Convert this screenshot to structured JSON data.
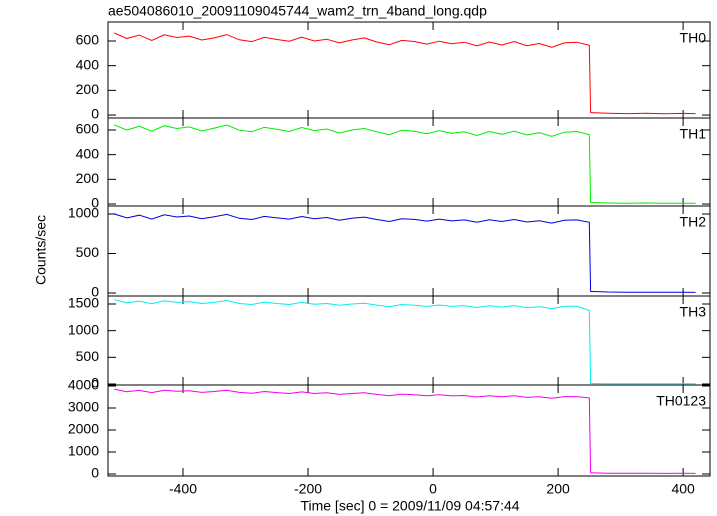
{
  "title": "ae504086010_20091109045744_wam2_trn_4band_long.qdp",
  "x_label": "Time [sec] 0 = 2009/11/09 04:57:44",
  "y_label": "Counts/sec",
  "chart_data": [
    {
      "type": "line",
      "x": [
        -510,
        -490,
        -470,
        -450,
        -430,
        -410,
        -390,
        -370,
        -350,
        -330,
        -310,
        -290,
        -270,
        -250,
        -230,
        -210,
        -190,
        -170,
        -150,
        -130,
        -110,
        -90,
        -70,
        -50,
        -30,
        -10,
        10,
        30,
        50,
        70,
        90,
        110,
        130,
        150,
        170,
        190,
        210,
        230,
        250,
        252,
        280,
        310,
        340,
        370,
        400,
        420
      ],
      "series": [
        {
          "name": "TH0",
          "color": "#ff0000",
          "values": [
            665,
            620,
            648,
            605,
            650,
            628,
            640,
            608,
            625,
            652,
            610,
            595,
            630,
            612,
            598,
            632,
            600,
            615,
            585,
            608,
            625,
            592,
            570,
            605,
            596,
            575,
            598,
            578,
            590,
            560,
            592,
            568,
            596,
            562,
            580,
            548,
            585,
            590,
            565,
            20,
            15,
            12,
            14,
            11,
            13,
            12
          ]
        }
      ],
      "xlim": [
        -520,
        443
      ],
      "xticks": [
        -400,
        -200,
        0,
        200,
        400
      ],
      "ylim": [
        -24,
        754
      ],
      "yticks": [
        0,
        200,
        400,
        600
      ]
    },
    {
      "type": "line",
      "x": [
        -510,
        -490,
        -470,
        -450,
        -430,
        -410,
        -390,
        -370,
        -350,
        -330,
        -310,
        -290,
        -270,
        -250,
        -230,
        -210,
        -190,
        -170,
        -150,
        -130,
        -110,
        -90,
        -70,
        -50,
        -30,
        -10,
        10,
        30,
        50,
        70,
        90,
        110,
        130,
        150,
        170,
        190,
        210,
        230,
        250,
        252,
        280,
        310,
        340,
        370,
        400,
        420
      ],
      "series": [
        {
          "name": "TH1",
          "color": "#00ee00",
          "values": [
            640,
            600,
            630,
            590,
            635,
            612,
            625,
            592,
            615,
            640,
            598,
            585,
            622,
            605,
            588,
            620,
            595,
            608,
            575,
            600,
            612,
            585,
            562,
            598,
            590,
            570,
            595,
            572,
            585,
            555,
            588,
            565,
            590,
            560,
            578,
            548,
            582,
            588,
            562,
            12,
            8,
            7,
            8,
            6,
            7,
            6
          ]
        }
      ],
      "xlim": [
        -520,
        443
      ],
      "xticks": [
        -400,
        -200,
        0,
        200,
        400
      ],
      "ylim": [
        -16,
        697
      ],
      "yticks": [
        0,
        200,
        400,
        600
      ]
    },
    {
      "type": "line",
      "x": [
        -510,
        -490,
        -470,
        -450,
        -430,
        -410,
        -390,
        -370,
        -350,
        -330,
        -310,
        -290,
        -270,
        -250,
        -230,
        -210,
        -190,
        -170,
        -150,
        -130,
        -110,
        -90,
        -70,
        -50,
        -30,
        -10,
        10,
        30,
        50,
        70,
        90,
        110,
        130,
        150,
        170,
        190,
        210,
        230,
        250,
        252,
        280,
        310,
        340,
        370,
        400,
        420
      ],
      "series": [
        {
          "name": "TH2",
          "color": "#0000dd",
          "values": [
            1000,
            950,
            985,
            935,
            990,
            962,
            975,
            940,
            965,
            995,
            945,
            930,
            970,
            950,
            935,
            968,
            940,
            955,
            920,
            945,
            960,
            930,
            905,
            940,
            932,
            910,
            935,
            912,
            925,
            895,
            928,
            905,
            930,
            898,
            915,
            885,
            920,
            925,
            895,
            20,
            12,
            10,
            10,
            9,
            9,
            8
          ]
        }
      ],
      "xlim": [
        -520,
        443
      ],
      "xticks": [
        -400,
        -200,
        0,
        200,
        400
      ],
      "ylim": [
        -38,
        1101
      ],
      "yticks": [
        0,
        500,
        1000
      ]
    },
    {
      "type": "line",
      "x": [
        -510,
        -490,
        -470,
        -450,
        -430,
        -410,
        -390,
        -370,
        -350,
        -330,
        -310,
        -290,
        -270,
        -250,
        -230,
        -210,
        -190,
        -170,
        -150,
        -130,
        -110,
        -90,
        -70,
        -50,
        -30,
        -10,
        10,
        30,
        50,
        70,
        90,
        110,
        130,
        150,
        170,
        190,
        210,
        230,
        250,
        252,
        280,
        310,
        340,
        370,
        400,
        420
      ],
      "series": [
        {
          "name": "TH3",
          "color": "#00eeee",
          "values": [
            1580,
            1520,
            1555,
            1505,
            1560,
            1530,
            1545,
            1510,
            1530,
            1565,
            1510,
            1490,
            1535,
            1510,
            1490,
            1530,
            1495,
            1510,
            1475,
            1500,
            1515,
            1480,
            1450,
            1490,
            1478,
            1455,
            1482,
            1455,
            1470,
            1435,
            1468,
            1442,
            1470,
            1430,
            1450,
            1415,
            1455,
            1460,
            1380,
            10,
            6,
            5,
            5,
            5,
            4,
            4
          ]
        }
      ],
      "xlim": [
        -520,
        443
      ],
      "xticks": [
        -400,
        -200,
        0,
        200,
        400
      ],
      "ylim": [
        -19,
        1650
      ],
      "yticks": [
        0,
        500,
        1000,
        1500
      ]
    },
    {
      "type": "line",
      "x": [
        -510,
        -490,
        -470,
        -450,
        -430,
        -410,
        -390,
        -370,
        -350,
        -330,
        -310,
        -290,
        -270,
        -250,
        -230,
        -210,
        -190,
        -170,
        -150,
        -130,
        -110,
        -90,
        -70,
        -50,
        -30,
        -10,
        10,
        30,
        50,
        70,
        90,
        110,
        130,
        150,
        170,
        190,
        210,
        230,
        250,
        252,
        280,
        310,
        340,
        370,
        400,
        420
      ],
      "series": [
        {
          "name": "TH0123",
          "color": "#ee00ee",
          "values": [
            3850,
            3740,
            3800,
            3700,
            3810,
            3760,
            3780,
            3710,
            3750,
            3810,
            3710,
            3670,
            3750,
            3700,
            3660,
            3730,
            3660,
            3690,
            3620,
            3660,
            3690,
            3620,
            3560,
            3630,
            3600,
            3560,
            3600,
            3550,
            3570,
            3500,
            3560,
            3510,
            3560,
            3480,
            3510,
            3440,
            3520,
            3520,
            3460,
            55,
            35,
            30,
            32,
            28,
            30,
            28
          ]
        }
      ],
      "xlim": [
        -520,
        443
      ],
      "xticks": [
        -400,
        -200,
        0,
        200,
        400
      ],
      "ylim": [
        -91,
        4045
      ],
      "yticks": [
        0,
        1000,
        2000,
        3000,
        4000
      ]
    }
  ]
}
